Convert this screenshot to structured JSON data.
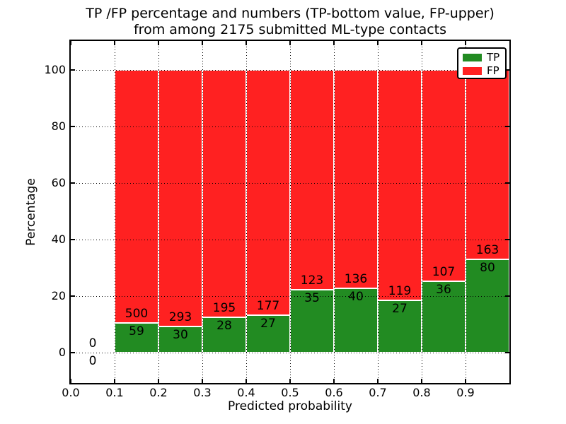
{
  "chart_data": {
    "type": "bar",
    "stacked": true,
    "normalized_to_percent": true,
    "title_lines": [
      "TP /FP percentage and numbers (TP-bottom value, FP-upper)",
      "from among 2175 submitted ML-type contacts"
    ],
    "xlabel": "Predicted probability",
    "ylabel": "Percentage",
    "xlim": [
      0.0,
      1.0
    ],
    "ylim": [
      -10.75,
      110.25
    ],
    "grid": true,
    "grid_style": "dotted",
    "xticks": {
      "values": [
        0.0,
        0.1,
        0.2,
        0.3,
        0.4,
        0.5,
        0.6,
        0.7,
        0.8,
        0.9
      ],
      "labels": [
        "0.0",
        "0.1",
        "0.2",
        "0.3",
        "0.4",
        "0.5",
        "0.6",
        "0.7",
        "0.8",
        "0.9"
      ]
    },
    "yticks": {
      "values": [
        0,
        20,
        40,
        60,
        80,
        100
      ],
      "labels": [
        "0",
        "20",
        "40",
        "60",
        "80",
        "100"
      ]
    },
    "colors": {
      "tp": "#228b22",
      "fp": "#ff2121",
      "bar_edge": "#ffffff"
    },
    "legend": {
      "position": "upper-right",
      "entries": [
        {
          "label": "TP",
          "color": "#228b22"
        },
        {
          "label": "FP",
          "color": "#ff2121"
        }
      ]
    },
    "bins": [
      {
        "range": [
          0.0,
          0.1
        ],
        "tp": 0,
        "fp": 0
      },
      {
        "range": [
          0.1,
          0.2
        ],
        "tp": 59,
        "fp": 500
      },
      {
        "range": [
          0.2,
          0.3
        ],
        "tp": 30,
        "fp": 293
      },
      {
        "range": [
          0.3,
          0.4
        ],
        "tp": 28,
        "fp": 195
      },
      {
        "range": [
          0.4,
          0.5
        ],
        "tp": 27,
        "fp": 177
      },
      {
        "range": [
          0.5,
          0.6
        ],
        "tp": 35,
        "fp": 123
      },
      {
        "range": [
          0.6,
          0.7
        ],
        "tp": 40,
        "fp": 136
      },
      {
        "range": [
          0.7,
          0.8
        ],
        "tp": 27,
        "fp": 119
      },
      {
        "range": [
          0.8,
          0.9
        ],
        "tp": 36,
        "fp": 107
      },
      {
        "range": [
          0.9,
          1.0
        ],
        "tp": 80,
        "fp": 163
      }
    ]
  }
}
